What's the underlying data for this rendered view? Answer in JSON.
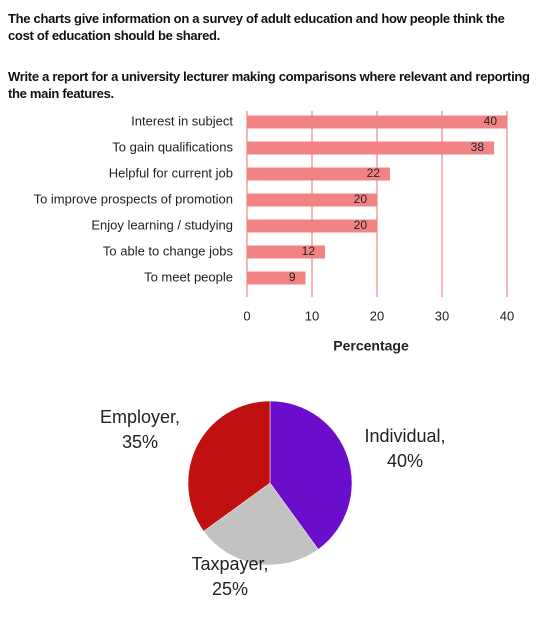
{
  "prompt": {
    "intro": "The charts give information on a survey of adult education and how people think the cost of education should be shared.",
    "task": "Write a report for a university lecturer making comparisons where relevant and reporting the main features."
  },
  "chart_data": [
    {
      "type": "bar",
      "orientation": "horizontal",
      "categories": [
        "Interest in subject",
        "To gain qualifications",
        "Helpful for current job",
        "To improve prospects of promotion",
        "Enjoy learning / studying",
        "To able to change jobs",
        "To meet people"
      ],
      "values": [
        40,
        38,
        22,
        20,
        20,
        12,
        9
      ],
      "color": "#f28385",
      "xlim": [
        0,
        40
      ],
      "xticks": [
        0,
        10,
        20,
        30,
        40
      ],
      "xlabel": "Percentage",
      "grid": true
    },
    {
      "type": "pie",
      "categories": [
        "Individual,",
        "Taxpayer,",
        "Employer,"
      ],
      "values": [
        40,
        25,
        35
      ],
      "value_labels": [
        "40%",
        "25%",
        "35%"
      ],
      "colors": [
        "#6a0ecb",
        "#c2c2c2",
        "#c0100f"
      ]
    }
  ]
}
